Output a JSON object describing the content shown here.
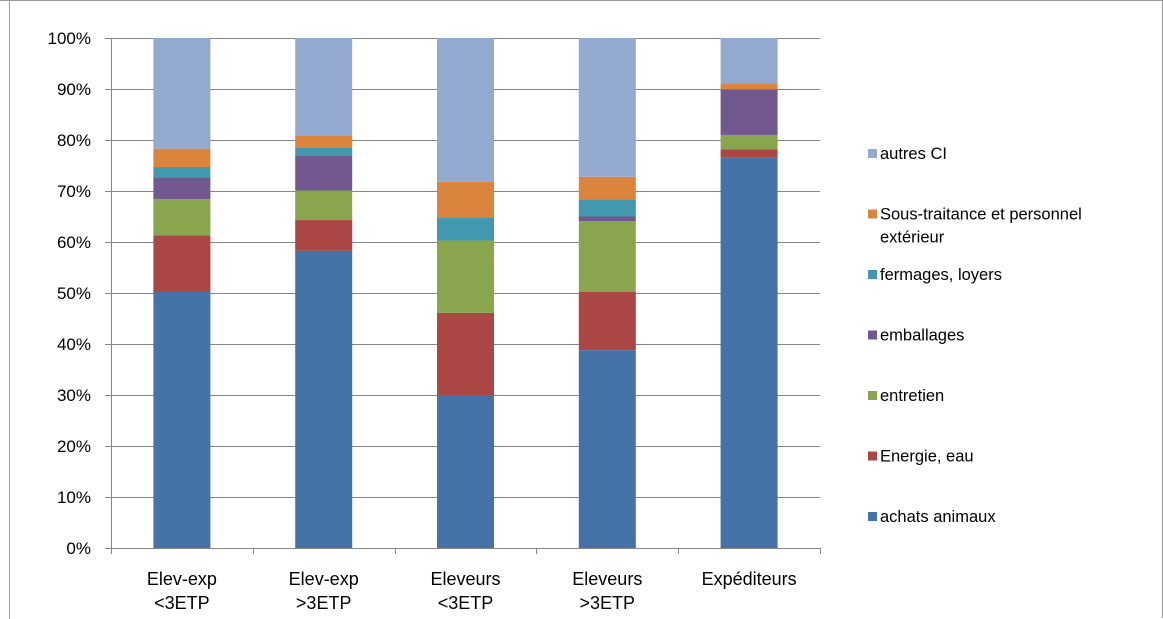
{
  "chart_data": {
    "type": "bar",
    "stacked": true,
    "percent_stacked": true,
    "categories": [
      [
        "Elev-exp",
        "<3ETP"
      ],
      [
        "Elev-exp",
        ">3ETP"
      ],
      [
        "Eleveurs",
        "<3ETP"
      ],
      [
        "Eleveurs",
        ">3ETP"
      ],
      [
        "Expéditeurs"
      ]
    ],
    "y_ticks": [
      "0%",
      "10%",
      "20%",
      "30%",
      "40%",
      "50%",
      "60%",
      "70%",
      "80%",
      "90%",
      "100%"
    ],
    "ylim": [
      0,
      100
    ],
    "grid": true,
    "legend_position": "right",
    "series": [
      {
        "name": "achats animaux",
        "color": "#4572A7",
        "values": [
          50.2,
          58.3,
          30.0,
          38.8,
          76.6
        ]
      },
      {
        "name": "Energie, eau",
        "color": "#AA4643",
        "values": [
          11.1,
          6.0,
          16.1,
          11.4,
          1.6
        ]
      },
      {
        "name": "entretien",
        "color": "#89A54E",
        "values": [
          7.1,
          5.8,
          14.2,
          13.9,
          2.8
        ]
      },
      {
        "name": "emballages",
        "color": "#71588F",
        "values": [
          4.3,
          6.9,
          0.0,
          0.9,
          8.9
        ]
      },
      {
        "name": "fermages, loyers",
        "color": "#4198AF",
        "values": [
          2.0,
          1.5,
          4.4,
          3.4,
          0.0
        ]
      },
      {
        "name": "Sous-traitance et personnel extérieur",
        "color": "#DB843D",
        "values": [
          3.6,
          2.4,
          7.1,
          4.4,
          1.2
        ]
      },
      {
        "name": "autres CI",
        "color": "#93A9CF",
        "values": [
          21.7,
          19.1,
          28.2,
          27.2,
          8.9
        ]
      }
    ]
  }
}
